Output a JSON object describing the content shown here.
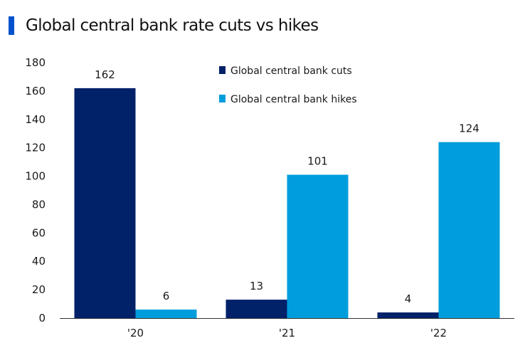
{
  "header": {
    "title": "Global central bank rate cuts vs hikes",
    "accent_color": "#0052cc"
  },
  "chart_data": {
    "type": "bar",
    "title": "Global central bank rate cuts vs hikes",
    "categories": [
      "'20",
      "'21",
      "'22"
    ],
    "series": [
      {
        "name": "Global central bank cuts",
        "values": [
          162,
          13,
          4
        ],
        "color": "#012169"
      },
      {
        "name": "Global central bank hikes",
        "values": [
          6,
          101,
          124
        ],
        "color": "#009ddc"
      }
    ],
    "ylim": [
      0,
      180
    ],
    "yticks": [
      0,
      20,
      40,
      60,
      80,
      100,
      120,
      140,
      160,
      180
    ],
    "xlabel": "",
    "ylabel": "",
    "grid": false,
    "data_labels": true,
    "legend_position": "top-right"
  }
}
